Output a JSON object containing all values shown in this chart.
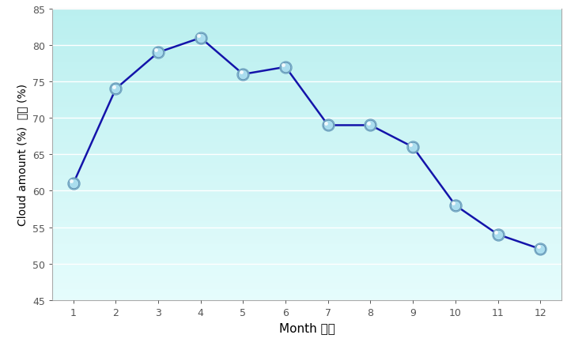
{
  "months": [
    1,
    2,
    3,
    4,
    5,
    6,
    7,
    8,
    9,
    10,
    11,
    12
  ],
  "values": [
    61,
    74,
    79,
    81,
    76,
    77,
    69,
    69,
    66,
    58,
    54,
    52
  ],
  "xlabel": "Month 月份",
  "ylabel_en": "Cloud amount (%)",
  "ylabel_zh": "雲量 (%)",
  "ylim": [
    45,
    85
  ],
  "yticks": [
    45,
    50,
    55,
    60,
    65,
    70,
    75,
    80,
    85
  ],
  "xticks": [
    1,
    2,
    3,
    4,
    5,
    6,
    7,
    8,
    9,
    10,
    11,
    12
  ],
  "line_color": "#1414AA",
  "marker_outer_color": "#87CEEB",
  "marker_edge_color": "#5599CC",
  "plot_bg_top": "#C8F0F0",
  "plot_bg_bottom": "#E8FAFA",
  "fig_bg_color": "#FFFFFF",
  "grid_color": "#FFFFFF",
  "border_color": "#AAAAAA",
  "tick_color": "#555555",
  "label_color": "#000000"
}
